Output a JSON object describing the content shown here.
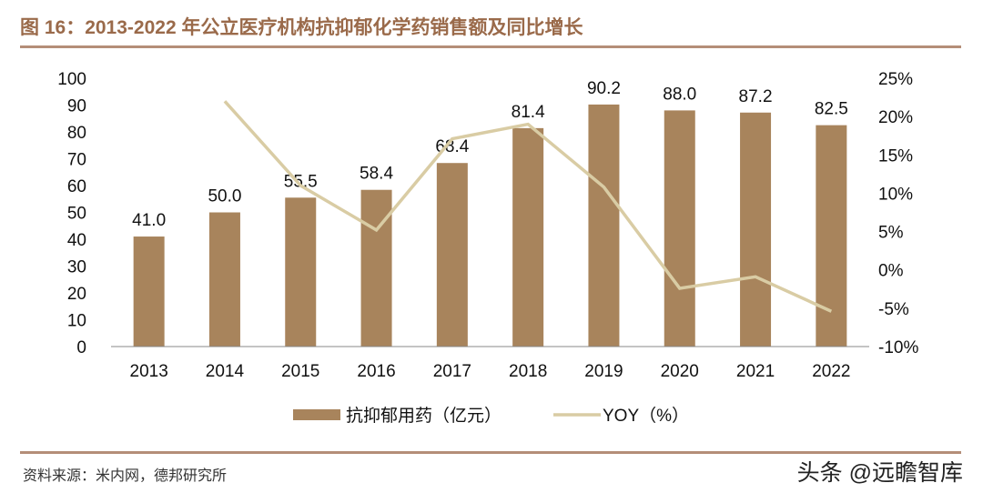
{
  "title": "图 16：2013-2022 年公立医疗机构抗抑郁化学药销售额及同比增长",
  "source": "资料来源：米内网，德邦研究所",
  "watermark": "头条 @远瞻智库",
  "chart_data": {
    "type": "bar+line",
    "categories": [
      "2013",
      "2014",
      "2015",
      "2016",
      "2017",
      "2018",
      "2019",
      "2020",
      "2021",
      "2022"
    ],
    "series": [
      {
        "name": "抗抑郁用药（亿元）",
        "type": "bar",
        "axis": "left",
        "color": "#a8845c",
        "values": [
          41.0,
          50.0,
          55.5,
          58.4,
          68.4,
          81.4,
          90.2,
          88.0,
          87.2,
          82.5
        ]
      },
      {
        "name": "YOY（%）",
        "type": "line",
        "axis": "right",
        "color": "#d9cca4",
        "values": [
          null,
          22.0,
          11.0,
          5.2,
          17.1,
          19.0,
          10.8,
          -2.4,
          -0.9,
          -5.4
        ]
      }
    ],
    "left_axis": {
      "ylim": [
        0,
        100
      ],
      "ticks": [
        "0",
        "10",
        "20",
        "30",
        "40",
        "50",
        "60",
        "70",
        "80",
        "90",
        "100"
      ]
    },
    "right_axis": {
      "ylim": [
        -10,
        25
      ],
      "ticks": [
        "-10%",
        "-5%",
        "0%",
        "5%",
        "10%",
        "15%",
        "20%",
        "25%"
      ]
    },
    "data_labels": [
      "41.0",
      "50.0",
      "55.5",
      "58.4",
      "68.4",
      "81.4",
      "90.2",
      "88.0",
      "87.2",
      "82.5"
    ],
    "legend_position": "bottom",
    "grid": false
  }
}
